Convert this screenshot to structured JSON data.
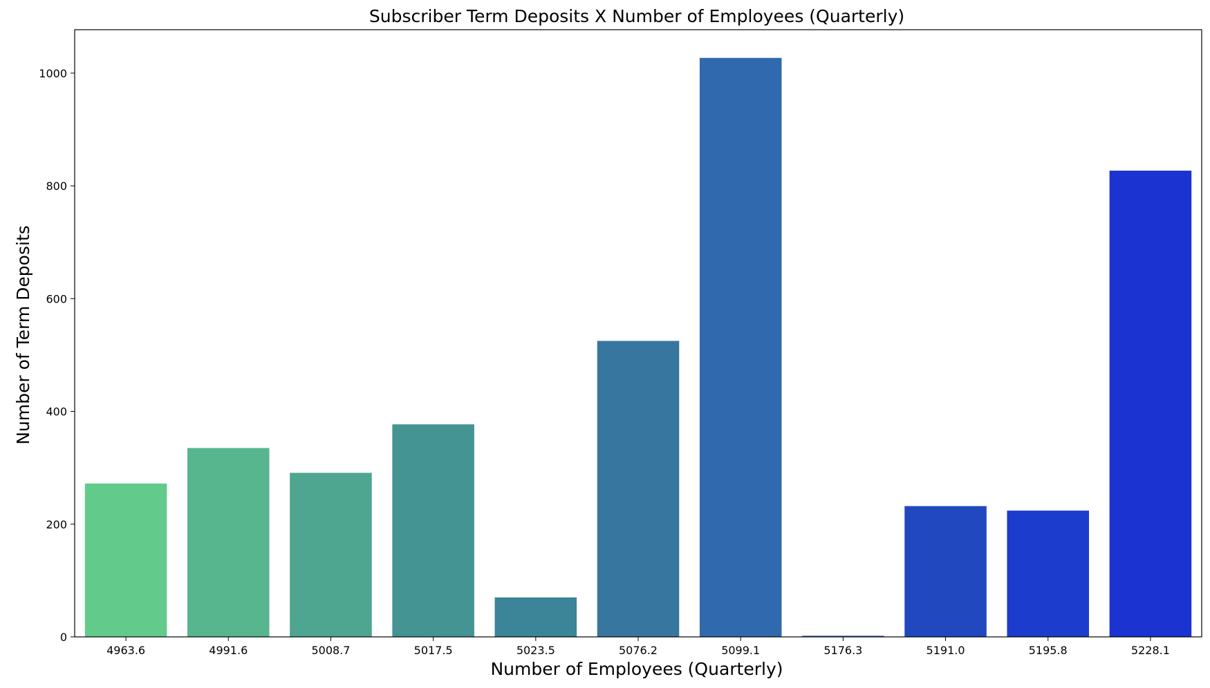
{
  "chart_data": {
    "type": "bar",
    "title": "Subscriber Term Deposits X Number of Employees (Quarterly)",
    "xlabel": "Number of Employees (Quarterly)",
    "ylabel": "Number of Term Deposits",
    "categories": [
      "4963.6",
      "4991.6",
      "5008.7",
      "5017.5",
      "5023.5",
      "5076.2",
      "5099.1",
      "5176.3",
      "5191.0",
      "5195.8",
      "5228.1"
    ],
    "values": [
      272,
      335,
      291,
      377,
      70,
      525,
      1027,
      2,
      232,
      224,
      827
    ],
    "ylim": [
      0,
      1077
    ],
    "yticks": [
      0,
      200,
      400,
      600,
      800,
      1000
    ],
    "grid": false,
    "colors": [
      "#62cb8c",
      "#57b68d",
      "#4ea590",
      "#449493",
      "#3c8497",
      "#37769f",
      "#3069ae",
      "#2a5abb",
      "#2248c0",
      "#1c3cce",
      "#1b33d1"
    ]
  }
}
